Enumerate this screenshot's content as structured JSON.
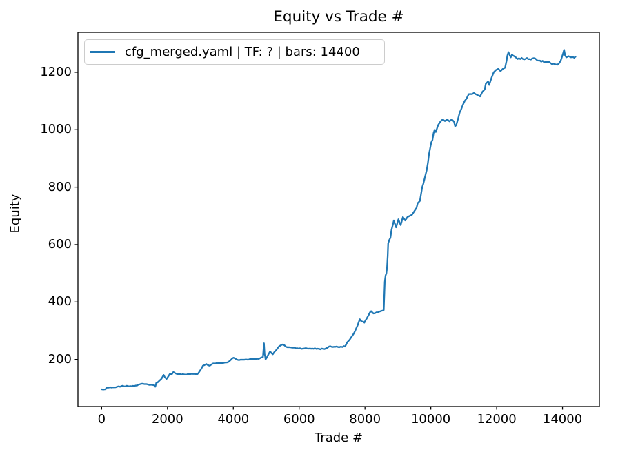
{
  "chart_data": {
    "type": "line",
    "title": "Equity vs Trade #",
    "xlabel": "Trade #",
    "ylabel": "Equity",
    "grid": false,
    "legend_position": "upper-left",
    "xlim": [
      -720,
      15120
    ],
    "ylim": [
      36,
      1339
    ],
    "xticks": [
      0,
      2000,
      4000,
      6000,
      8000,
      10000,
      12000,
      14000
    ],
    "yticks": [
      200,
      400,
      600,
      800,
      1000,
      1200
    ],
    "axis_color": "#000000",
    "series": [
      {
        "name": "cfg_merged.yaml | TF: ? | bars: 14400",
        "color": "#1f77b4",
        "points": [
          [
            1,
            96
          ],
          [
            50,
            95
          ],
          [
            120,
            96
          ],
          [
            150,
            102
          ],
          [
            300,
            102
          ],
          [
            430,
            103
          ],
          [
            600,
            107
          ],
          [
            800,
            107
          ],
          [
            950,
            108
          ],
          [
            1076,
            109
          ],
          [
            1150,
            113
          ],
          [
            1200,
            115
          ],
          [
            1300,
            114
          ],
          [
            1400,
            113
          ],
          [
            1500,
            112
          ],
          [
            1593,
            110
          ],
          [
            1630,
            105
          ],
          [
            1660,
            118
          ],
          [
            1700,
            120
          ],
          [
            1765,
            127
          ],
          [
            1820,
            133
          ],
          [
            1883,
            146
          ],
          [
            1920,
            138
          ],
          [
            1972,
            132
          ],
          [
            2020,
            140
          ],
          [
            2075,
            150
          ],
          [
            2130,
            148
          ],
          [
            2179,
            156
          ],
          [
            2250,
            151
          ],
          [
            2352,
            148
          ],
          [
            2500,
            148
          ],
          [
            2700,
            149
          ],
          [
            2900,
            148
          ],
          [
            2973,
            158
          ],
          [
            3030,
            168
          ],
          [
            3076,
            178
          ],
          [
            3180,
            184
          ],
          [
            3283,
            178
          ],
          [
            3387,
            186
          ],
          [
            3600,
            187
          ],
          [
            3834,
            190
          ],
          [
            3938,
            200
          ],
          [
            4008,
            206
          ],
          [
            4100,
            200
          ],
          [
            4145,
            198
          ],
          [
            4300,
            199
          ],
          [
            4500,
            201
          ],
          [
            4700,
            202
          ],
          [
            4807,
            204
          ],
          [
            4900,
            208
          ],
          [
            4931,
            256
          ],
          [
            4950,
            218
          ],
          [
            4966,
            212
          ],
          [
            4980,
            200
          ],
          [
            5050,
            214
          ],
          [
            5117,
            228
          ],
          [
            5200,
            218
          ],
          [
            5300,
            232
          ],
          [
            5394,
            246
          ],
          [
            5497,
            252
          ],
          [
            5601,
            244
          ],
          [
            5738,
            242
          ],
          [
            5945,
            239
          ],
          [
            6150,
            238
          ],
          [
            6400,
            238
          ],
          [
            6600,
            237
          ],
          [
            6772,
            236
          ],
          [
            6910,
            245
          ],
          [
            7100,
            244
          ],
          [
            7250,
            244
          ],
          [
            7392,
            245
          ],
          [
            7462,
            260
          ],
          [
            7530,
            268
          ],
          [
            7600,
            280
          ],
          [
            7660,
            290
          ],
          [
            7703,
            300
          ],
          [
            7773,
            318
          ],
          [
            7842,
            340
          ],
          [
            7880,
            334
          ],
          [
            7910,
            332
          ],
          [
            7980,
            328
          ],
          [
            8050,
            342
          ],
          [
            8117,
            356
          ],
          [
            8187,
            368
          ],
          [
            8256,
            360
          ],
          [
            8350,
            364
          ],
          [
            8428,
            366
          ],
          [
            8500,
            369
          ],
          [
            8540,
            370
          ],
          [
            8570,
            372
          ],
          [
            8601,
            470
          ],
          [
            8625,
            492
          ],
          [
            8650,
            500
          ],
          [
            8670,
            520
          ],
          [
            8690,
            560
          ],
          [
            8704,
            604
          ],
          [
            8738,
            616
          ],
          [
            8773,
            624
          ],
          [
            8807,
            652
          ],
          [
            8877,
            684
          ],
          [
            8946,
            660
          ],
          [
            9015,
            688
          ],
          [
            9084,
            668
          ],
          [
            9152,
            696
          ],
          [
            9221,
            684
          ],
          [
            9290,
            696
          ],
          [
            9359,
            700
          ],
          [
            9428,
            704
          ],
          [
            9497,
            716
          ],
          [
            9566,
            728
          ],
          [
            9600,
            744
          ],
          [
            9669,
            752
          ],
          [
            9738,
            800
          ],
          [
            9773,
            812
          ],
          [
            9807,
            828
          ],
          [
            9876,
            860
          ],
          [
            9911,
            884
          ],
          [
            9946,
            916
          ],
          [
            9980,
            936
          ],
          [
            10014,
            956
          ],
          [
            10049,
            964
          ],
          [
            10083,
            988
          ],
          [
            10118,
            1000
          ],
          [
            10152,
            992
          ],
          [
            10221,
            1016
          ],
          [
            10290,
            1028
          ],
          [
            10359,
            1036
          ],
          [
            10428,
            1030
          ],
          [
            10497,
            1036
          ],
          [
            10566,
            1029
          ],
          [
            10635,
            1036
          ],
          [
            10704,
            1028
          ],
          [
            10738,
            1012
          ],
          [
            10773,
            1016
          ],
          [
            10842,
            1044
          ],
          [
            10876,
            1060
          ],
          [
            10911,
            1068
          ],
          [
            10980,
            1088
          ],
          [
            11083,
            1108
          ],
          [
            11152,
            1124
          ],
          [
            11256,
            1124
          ],
          [
            11359,
            1124
          ],
          [
            11428,
            1120
          ],
          [
            11497,
            1116
          ],
          [
            11566,
            1132
          ],
          [
            11635,
            1140
          ],
          [
            11670,
            1160
          ],
          [
            11739,
            1168
          ],
          [
            11773,
            1156
          ],
          [
            11842,
            1180
          ],
          [
            11911,
            1200
          ],
          [
            11980,
            1208
          ],
          [
            12049,
            1212
          ],
          [
            12118,
            1204
          ],
          [
            12187,
            1212
          ],
          [
            12256,
            1216
          ],
          [
            12300,
            1240
          ],
          [
            12325,
            1258
          ],
          [
            12359,
            1270
          ],
          [
            12400,
            1258
          ],
          [
            12428,
            1252
          ],
          [
            12465,
            1262
          ],
          [
            12497,
            1258
          ],
          [
            12532,
            1256
          ],
          [
            12600,
            1250
          ],
          [
            12635,
            1246
          ],
          [
            12800,
            1246
          ],
          [
            13000,
            1246
          ],
          [
            13200,
            1245
          ],
          [
            13393,
            1240
          ],
          [
            13497,
            1236
          ],
          [
            13635,
            1232
          ],
          [
            13773,
            1228
          ],
          [
            13842,
            1226
          ],
          [
            13945,
            1240
          ],
          [
            14014,
            1264
          ],
          [
            14048,
            1278
          ],
          [
            14080,
            1258
          ],
          [
            14117,
            1252
          ],
          [
            14186,
            1256
          ],
          [
            14255,
            1252
          ],
          [
            14320,
            1253
          ],
          [
            14395,
            1254
          ]
        ]
      }
    ]
  },
  "layout_note_colors": {
    "line": "#1f77b4",
    "legend_border": "#cccccc",
    "background": "#ffffff"
  }
}
